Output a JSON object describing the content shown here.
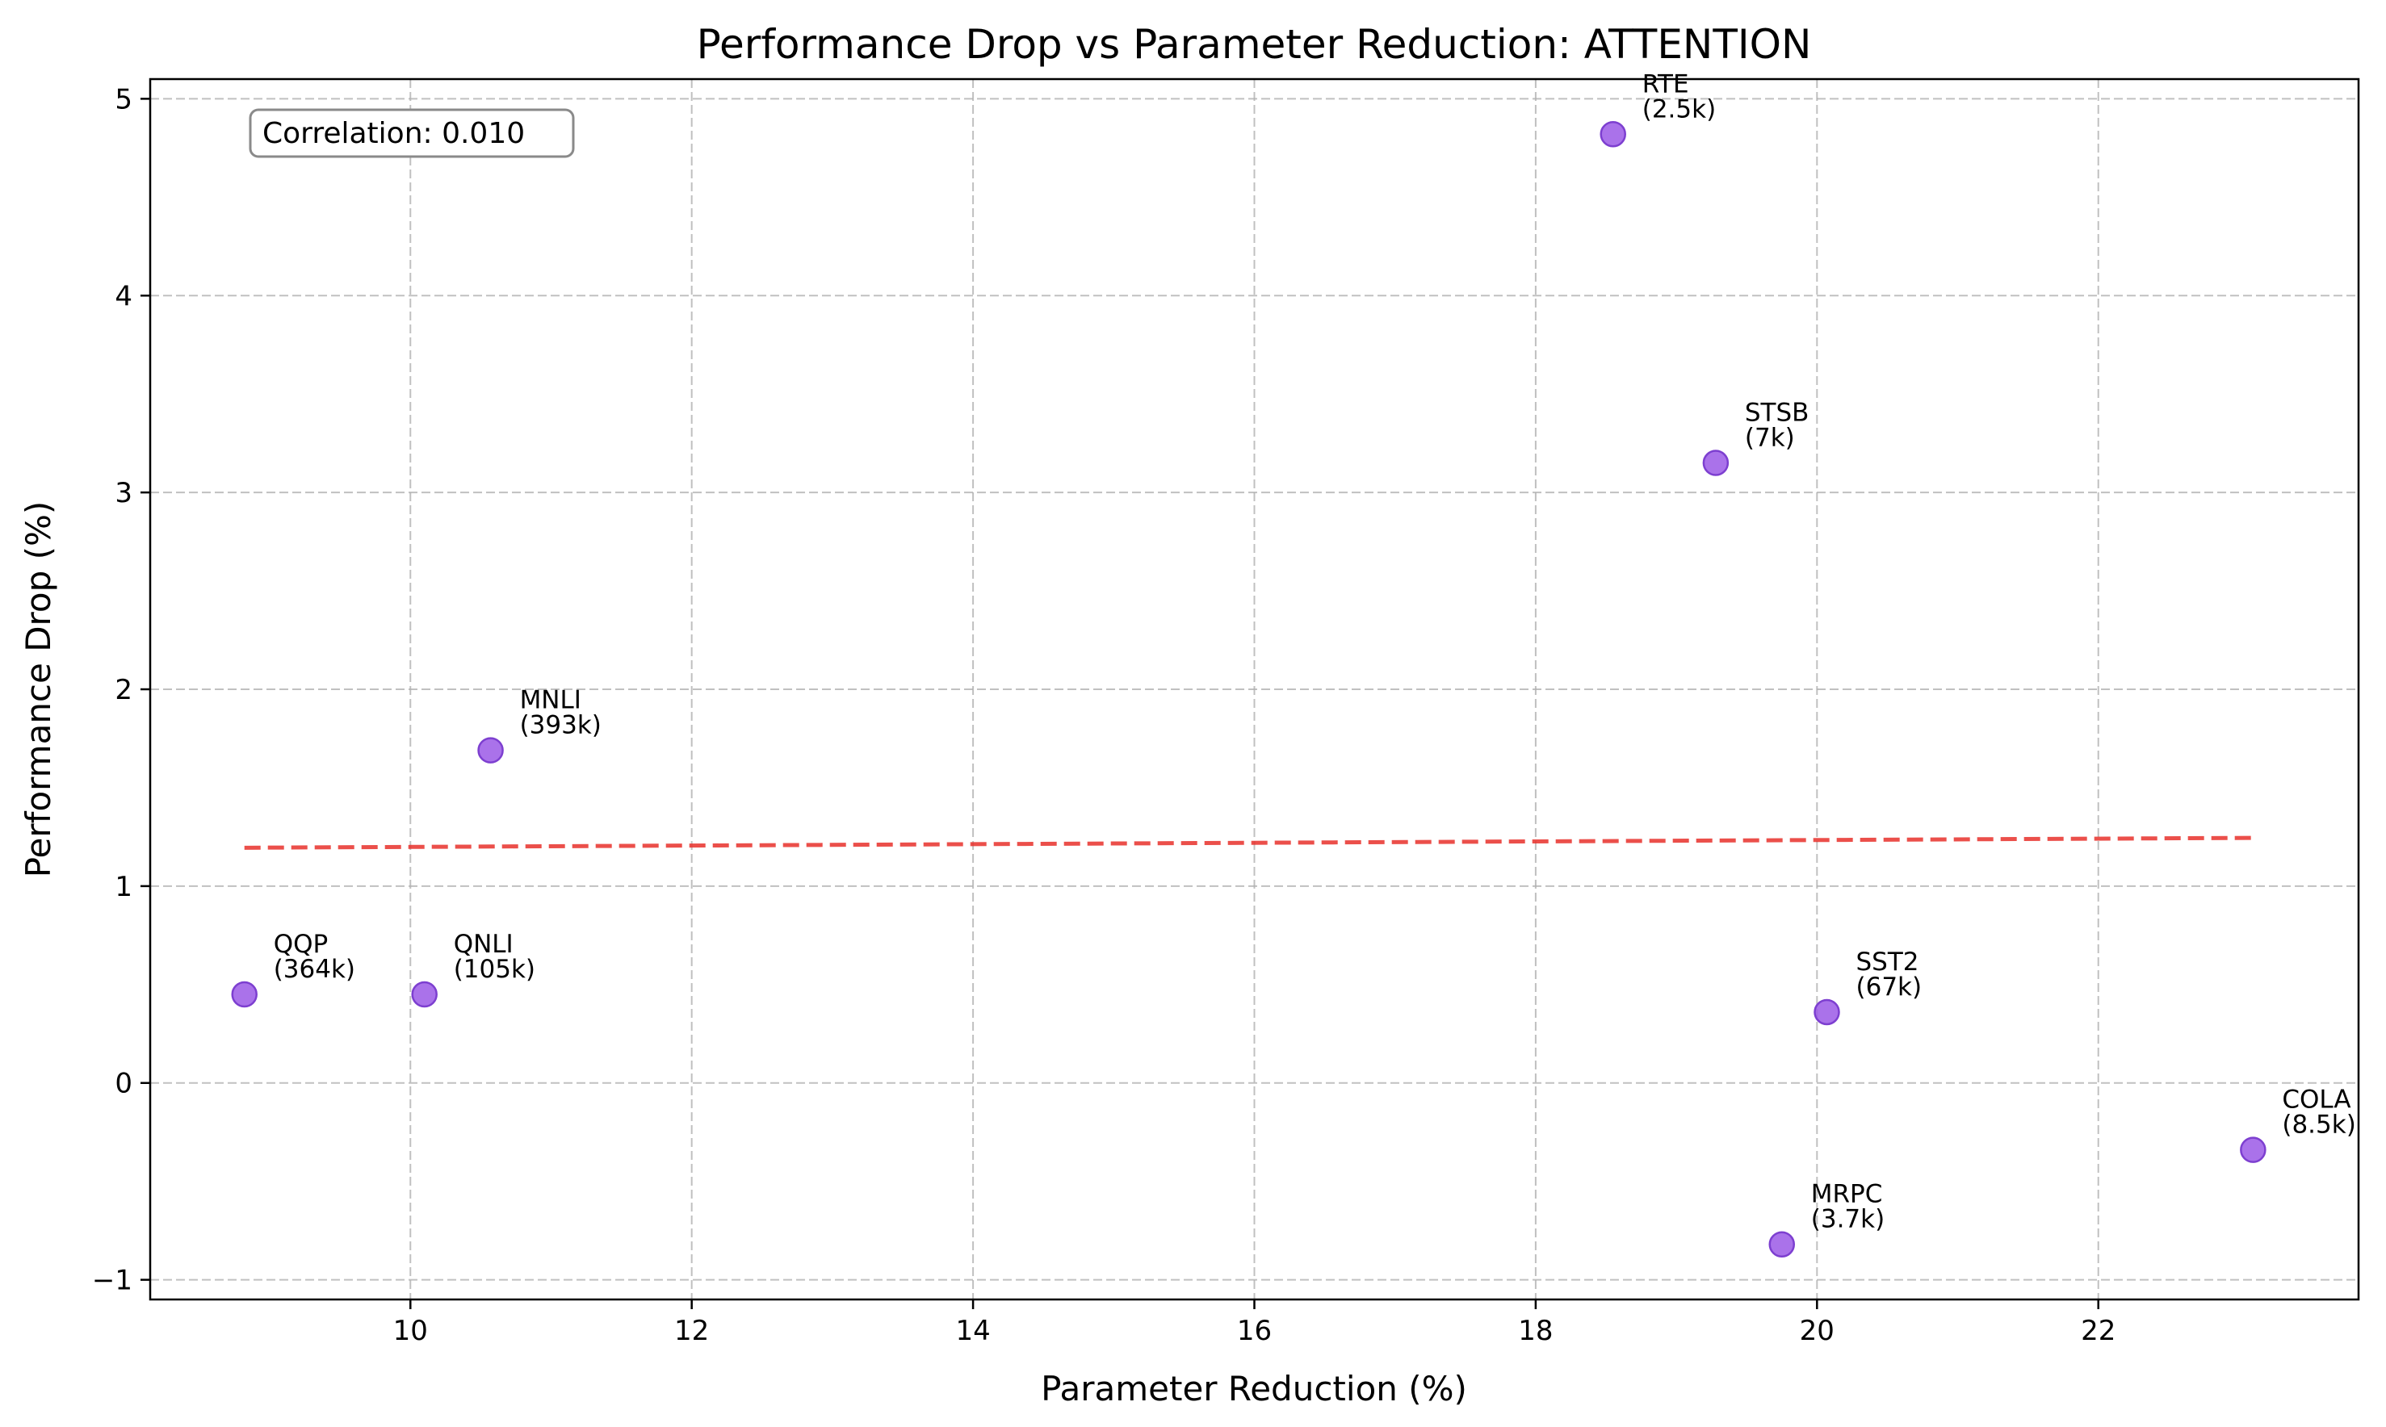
{
  "chart_data": {
    "type": "scatter",
    "title": "Performance Drop vs Parameter Reduction: ATTENTION",
    "xlabel": "Parameter Reduction (%)",
    "ylabel": "Performance Drop (%)",
    "xlim": [
      8.15,
      23.85
    ],
    "ylim": [
      -1.1,
      5.1
    ],
    "xticks": [
      10,
      12,
      14,
      16,
      18,
      20,
      22
    ],
    "yticks": [
      -1,
      0,
      1,
      2,
      3,
      4,
      5
    ],
    "grid": true,
    "point_color": "#9b59e6",
    "points": [
      {
        "name": "QQP",
        "size_label": "(364k)",
        "x": 8.82,
        "y": 0.45
      },
      {
        "name": "QNLI",
        "size_label": "(105k)",
        "x": 10.1,
        "y": 0.45
      },
      {
        "name": "MNLI",
        "size_label": "(393k)",
        "x": 10.57,
        "y": 1.69
      },
      {
        "name": "RTE",
        "size_label": "(2.5k)",
        "x": 18.55,
        "y": 4.82
      },
      {
        "name": "STSB",
        "size_label": "(7k)",
        "x": 19.28,
        "y": 3.15
      },
      {
        "name": "SST2",
        "size_label": "(67k)",
        "x": 20.07,
        "y": 0.36
      },
      {
        "name": "MRPC",
        "size_label": "(3.7k)",
        "x": 19.75,
        "y": -0.82
      },
      {
        "name": "COLA",
        "size_label": "(8.5k)",
        "x": 23.1,
        "y": -0.34
      }
    ],
    "trend_line": {
      "color": "#e8302a",
      "style": "dashed",
      "x": [
        8.82,
        23.1
      ],
      "y": [
        1.195,
        1.245
      ]
    },
    "annotation": {
      "text": "Correlation: 0.010",
      "placement": "top-left"
    }
  }
}
